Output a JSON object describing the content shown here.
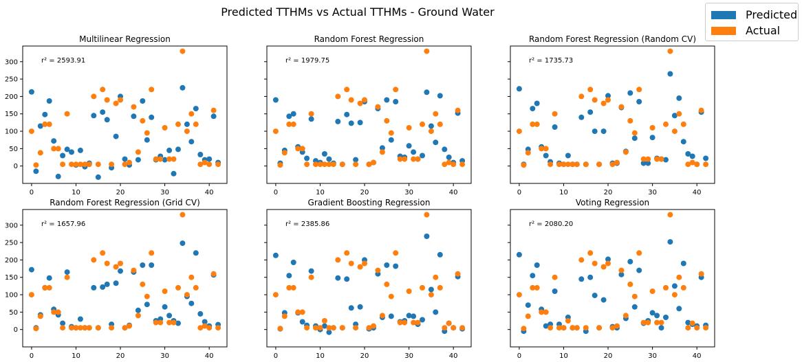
{
  "figure": {
    "title": "Predicted TTHMs vs Actual TTHMs - Ground Water",
    "legend": [
      {
        "label": "Predicted",
        "color": "#1f77b4"
      },
      {
        "label": "Actual",
        "color": "#ff7f0e"
      }
    ]
  },
  "chart_data": [
    {
      "type": "scatter",
      "title": "Multilinear Regression",
      "annotation": "r² = 2593.91",
      "xlim": [
        -2,
        44
      ],
      "ylim": [
        -50,
        345
      ],
      "xticks": [
        0,
        10,
        20,
        30,
        40
      ],
      "yticks": [
        0,
        50,
        100,
        150,
        200,
        250,
        300
      ],
      "x": [
        0,
        1,
        2,
        3,
        4,
        5,
        6,
        7,
        8,
        9,
        10,
        11,
        12,
        13,
        14,
        15,
        16,
        17,
        18,
        19,
        20,
        21,
        22,
        23,
        24,
        25,
        26,
        27,
        28,
        29,
        30,
        31,
        32,
        33,
        34,
        35,
        36,
        37,
        38,
        39,
        40,
        41,
        42
      ],
      "series": [
        {
          "name": "Predicted",
          "color": "#1f77b4",
          "values": [
            213,
            -15,
            115,
            148,
            187,
            72,
            -30,
            30,
            48,
            40,
            3,
            45,
            -2,
            8,
            145,
            -32,
            155,
            133,
            -5,
            85,
            200,
            20,
            3,
            143,
            18,
            187,
            75,
            140,
            18,
            28,
            18,
            45,
            -22,
            48,
            225,
            120,
            70,
            165,
            33,
            18,
            20,
            143,
            10
          ]
        },
        {
          "name": "Actual",
          "color": "#ff7f0e",
          "values": [
            100,
            3,
            38,
            120,
            120,
            50,
            50,
            5,
            150,
            5,
            5,
            5,
            5,
            5,
            200,
            5,
            220,
            190,
            5,
            180,
            190,
            5,
            10,
            170,
            40,
            130,
            95,
            220,
            20,
            20,
            110,
            20,
            20,
            120,
            330,
            100,
            150,
            120,
            5,
            10,
            5,
            160,
            5
          ]
        }
      ]
    },
    {
      "type": "scatter",
      "title": "Random Forest Regression",
      "annotation": "r² = 1979.75",
      "xlim": [
        -2,
        44
      ],
      "ylim": [
        -50,
        345
      ],
      "xticks": [
        0,
        10,
        20,
        30,
        40
      ],
      "yticks": [
        0,
        50,
        100,
        150,
        200,
        250,
        300
      ],
      "x": [
        0,
        1,
        2,
        3,
        4,
        5,
        6,
        7,
        8,
        9,
        10,
        11,
        12,
        13,
        14,
        15,
        16,
        17,
        18,
        19,
        20,
        21,
        22,
        23,
        24,
        25,
        26,
        27,
        28,
        29,
        30,
        31,
        32,
        33,
        34,
        35,
        36,
        37,
        38,
        39,
        40,
        41,
        42
      ],
      "series": [
        {
          "name": "Predicted",
          "color": "#1f77b4",
          "values": [
            190,
            8,
            45,
            143,
            150,
            55,
            40,
            22,
            135,
            15,
            10,
            35,
            20,
            8,
            128,
            5,
            148,
            123,
            18,
            125,
            185,
            5,
            10,
            165,
            52,
            190,
            75,
            185,
            28,
            25,
            58,
            40,
            20,
            30,
            212,
            115,
            68,
            202,
            48,
            25,
            10,
            152,
            15
          ]
        },
        {
          "name": "Actual",
          "color": "#ff7f0e",
          "values": [
            100,
            3,
            38,
            120,
            120,
            50,
            50,
            5,
            150,
            5,
            5,
            5,
            5,
            5,
            200,
            5,
            220,
            190,
            5,
            180,
            190,
            5,
            10,
            170,
            40,
            130,
            95,
            220,
            20,
            20,
            110,
            20,
            20,
            120,
            330,
            100,
            150,
            120,
            5,
            10,
            5,
            160,
            5
          ]
        }
      ]
    },
    {
      "type": "scatter",
      "title": "Random Forest Regression (Random CV)",
      "annotation": "r² = 1735.73",
      "xlim": [
        -2,
        44
      ],
      "ylim": [
        -50,
        345
      ],
      "xticks": [
        0,
        10,
        20,
        30,
        40
      ],
      "yticks": [
        0,
        50,
        100,
        150,
        200,
        250,
        300
      ],
      "x": [
        0,
        1,
        2,
        3,
        4,
        5,
        6,
        7,
        8,
        9,
        10,
        11,
        12,
        13,
        14,
        15,
        16,
        17,
        18,
        19,
        20,
        21,
        22,
        23,
        24,
        25,
        26,
        27,
        28,
        29,
        30,
        31,
        32,
        33,
        34,
        35,
        36,
        37,
        38,
        39,
        40,
        41,
        42
      ],
      "series": [
        {
          "name": "Predicted",
          "color": "#1f77b4",
          "values": [
            222,
            5,
            48,
            165,
            180,
            55,
            30,
            12,
            112,
            8,
            5,
            30,
            5,
            5,
            140,
            5,
            155,
            100,
            5,
            100,
            202,
            8,
            8,
            168,
            42,
            210,
            80,
            185,
            8,
            8,
            82,
            22,
            20,
            18,
            265,
            145,
            195,
            70,
            35,
            28,
            5,
            155,
            22
          ]
        },
        {
          "name": "Actual",
          "color": "#ff7f0e",
          "values": [
            100,
            3,
            38,
            120,
            120,
            50,
            50,
            5,
            150,
            5,
            5,
            5,
            5,
            5,
            200,
            5,
            220,
            190,
            5,
            180,
            190,
            5,
            10,
            170,
            40,
            130,
            95,
            220,
            20,
            20,
            110,
            20,
            20,
            120,
            330,
            100,
            150,
            120,
            5,
            10,
            5,
            160,
            5
          ]
        }
      ]
    },
    {
      "type": "scatter",
      "title": "Random Forest Regression (Grid CV)",
      "annotation": "r² = 1657.96",
      "xlim": [
        -2,
        44
      ],
      "ylim": [
        -50,
        345
      ],
      "xticks": [
        0,
        10,
        20,
        30,
        40
      ],
      "yticks": [
        0,
        50,
        100,
        150,
        200,
        250,
        300
      ],
      "x": [
        0,
        1,
        2,
        3,
        4,
        5,
        6,
        7,
        8,
        9,
        10,
        11,
        12,
        13,
        14,
        15,
        16,
        17,
        18,
        19,
        20,
        21,
        22,
        23,
        24,
        25,
        26,
        27,
        28,
        29,
        30,
        31,
        32,
        33,
        34,
        35,
        36,
        37,
        38,
        39,
        40,
        41,
        42
      ],
      "series": [
        {
          "name": "Predicted",
          "color": "#1f77b4",
          "values": [
            172,
            5,
            42,
            120,
            148,
            58,
            42,
            18,
            165,
            8,
            5,
            30,
            5,
            5,
            120,
            5,
            122,
            130,
            15,
            133,
            168,
            5,
            12,
            165,
            55,
            185,
            72,
            185,
            25,
            30,
            65,
            40,
            25,
            18,
            248,
            95,
            75,
            220,
            45,
            22,
            10,
            157,
            14
          ]
        },
        {
          "name": "Actual",
          "color": "#ff7f0e",
          "values": [
            100,
            3,
            38,
            120,
            120,
            50,
            50,
            5,
            150,
            5,
            5,
            5,
            5,
            5,
            200,
            5,
            220,
            190,
            5,
            180,
            190,
            5,
            10,
            170,
            40,
            130,
            95,
            220,
            20,
            20,
            110,
            20,
            20,
            120,
            330,
            100,
            150,
            120,
            5,
            10,
            5,
            160,
            5
          ]
        }
      ]
    },
    {
      "type": "scatter",
      "title": "Gradient Boosting Regression",
      "annotation": "r² = 2385.86",
      "xlim": [
        -2,
        44
      ],
      "ylim": [
        -50,
        345
      ],
      "xticks": [
        0,
        10,
        20,
        30,
        40
      ],
      "yticks": [
        0,
        50,
        100,
        150,
        200,
        250,
        300
      ],
      "x": [
        0,
        1,
        2,
        3,
        4,
        5,
        6,
        7,
        8,
        9,
        10,
        11,
        12,
        13,
        14,
        15,
        16,
        17,
        18,
        19,
        20,
        21,
        22,
        23,
        24,
        25,
        26,
        27,
        28,
        29,
        30,
        31,
        32,
        33,
        34,
        35,
        36,
        37,
        38,
        39,
        40,
        41,
        42
      ],
      "series": [
        {
          "name": "Predicted",
          "color": "#1f77b4",
          "values": [
            213,
            2,
            48,
            155,
            193,
            48,
            22,
            12,
            168,
            10,
            0,
            10,
            -8,
            5,
            148,
            5,
            145,
            62,
            15,
            65,
            200,
            2,
            5,
            160,
            35,
            185,
            38,
            182,
            22,
            25,
            40,
            38,
            15,
            28,
            268,
            115,
            50,
            215,
            -5,
            18,
            5,
            152,
            2
          ]
        },
        {
          "name": "Actual",
          "color": "#ff7f0e",
          "values": [
            100,
            3,
            38,
            120,
            120,
            50,
            50,
            5,
            150,
            5,
            5,
            25,
            5,
            5,
            200,
            5,
            220,
            190,
            5,
            180,
            190,
            5,
            10,
            170,
            40,
            130,
            95,
            220,
            20,
            20,
            110,
            20,
            20,
            120,
            330,
            100,
            150,
            120,
            5,
            18,
            5,
            160,
            5
          ]
        }
      ]
    },
    {
      "type": "scatter",
      "title": "Voting Regression",
      "annotation": "r² = 2080.20",
      "xlim": [
        -2,
        44
      ],
      "ylim": [
        -50,
        345
      ],
      "xticks": [
        0,
        10,
        20,
        30,
        40
      ],
      "yticks": [
        0,
        50,
        100,
        150,
        200,
        250,
        300
      ],
      "x": [
        0,
        1,
        2,
        3,
        4,
        5,
        6,
        7,
        8,
        9,
        10,
        11,
        12,
        13,
        14,
        15,
        16,
        17,
        18,
        19,
        20,
        21,
        22,
        23,
        24,
        25,
        26,
        27,
        28,
        29,
        30,
        31,
        32,
        33,
        34,
        35,
        36,
        37,
        38,
        39,
        40,
        41,
        42
      ],
      "series": [
        {
          "name": "Predicted",
          "color": "#1f77b4",
          "values": [
            215,
            -5,
            70,
            155,
            185,
            58,
            10,
            15,
            110,
            15,
            5,
            35,
            5,
            5,
            145,
            -5,
            150,
            98,
            5,
            85,
            202,
            8,
            5,
            158,
            32,
            195,
            65,
            170,
            18,
            25,
            48,
            40,
            5,
            35,
            252,
            125,
            60,
            190,
            20,
            15,
            10,
            150,
            12
          ]
        },
        {
          "name": "Actual",
          "color": "#ff7f0e",
          "values": [
            100,
            3,
            38,
            120,
            120,
            50,
            50,
            5,
            150,
            5,
            5,
            25,
            5,
            5,
            200,
            5,
            220,
            190,
            5,
            180,
            190,
            5,
            10,
            170,
            40,
            130,
            95,
            220,
            20,
            20,
            110,
            20,
            20,
            120,
            330,
            100,
            150,
            120,
            5,
            18,
            5,
            160,
            5
          ]
        }
      ]
    }
  ]
}
